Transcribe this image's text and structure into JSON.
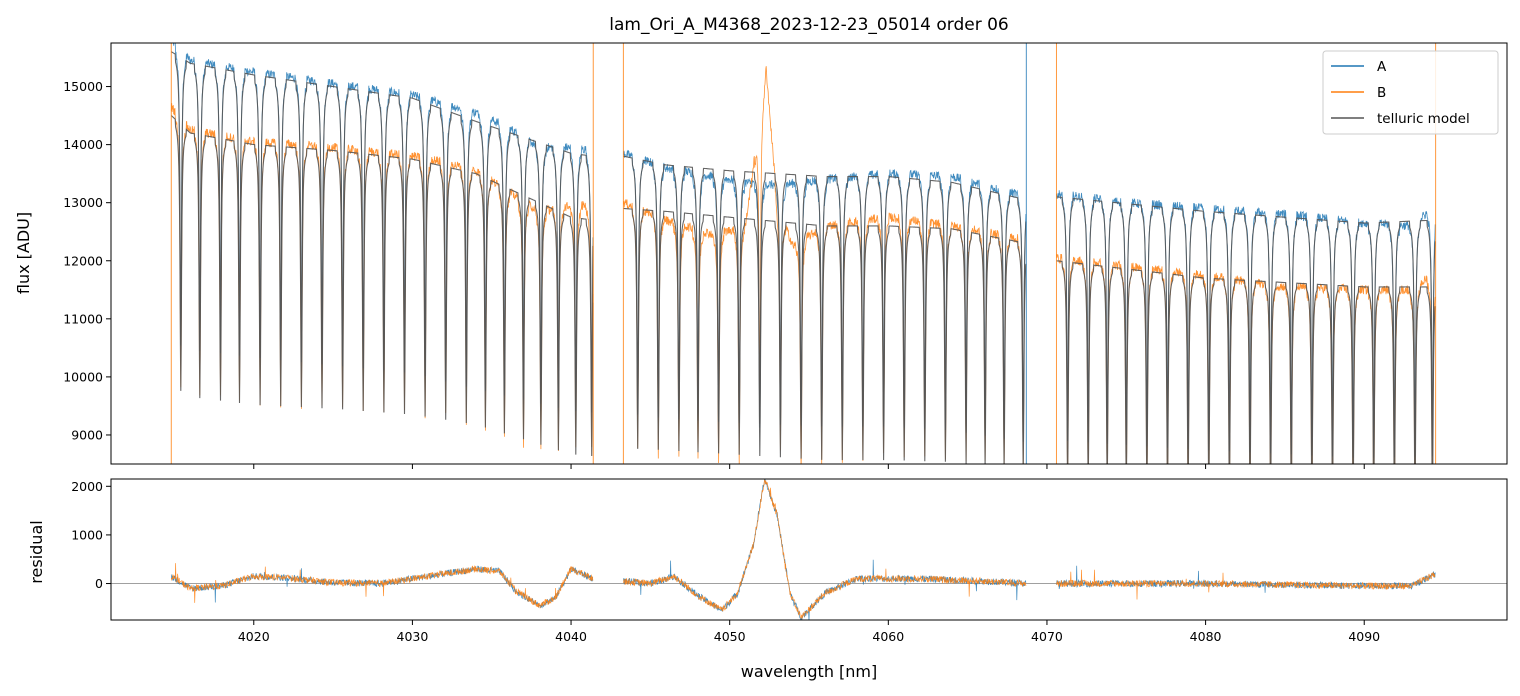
{
  "chart_data": {
    "type": "line",
    "title": "lam_Ori_A_M4368_2023-12-23_05014  order 06",
    "xlabel": "wavelength [nm]",
    "xlim": [
      4011,
      4099
    ],
    "x_ticks": [
      4020,
      4030,
      4040,
      4050,
      4060,
      4070,
      4080,
      4090
    ],
    "colors": {
      "A": "#1f77b4",
      "B": "#ff7f0e",
      "telluric": "#555555",
      "zero": "#808080"
    },
    "panels": [
      {
        "name": "flux",
        "ylabel": "flux [ADU]",
        "ylim": [
          8500,
          15750
        ],
        "y_ticks": [
          9000,
          10000,
          11000,
          12000,
          13000,
          14000,
          15000
        ],
        "legend": {
          "placement": "top-right",
          "entries": [
            "A",
            "B",
            "telluric model"
          ]
        },
        "continuum": {
          "segments": [
            [
              4014.8,
              4041.4
            ],
            [
              4043.3,
              4068.7
            ],
            [
              4070.6,
              4094.5
            ]
          ],
          "A_knots": [
            [
              4014.8,
              15800
            ],
            [
              4016,
              15450
            ],
            [
              4020,
              15250
            ],
            [
              4025,
              15050
            ],
            [
              4030,
              14850
            ],
            [
              4034,
              14550
            ],
            [
              4036,
              14300
            ],
            [
              4038,
              13950
            ],
            [
              4040,
              13950
            ],
            [
              4041.4,
              13900
            ],
            [
              4043.3,
              13850
            ],
            [
              4046,
              13600
            ],
            [
              4049,
              13450
            ],
            [
              4051,
              13350
            ],
            [
              4053,
              13300
            ],
            [
              4056,
              13400
            ],
            [
              4060,
              13500
            ],
            [
              4064,
              13450
            ],
            [
              4066,
              13300
            ],
            [
              4068.7,
              13100
            ],
            [
              4070.6,
              13150
            ],
            [
              4075,
              13000
            ],
            [
              4080,
              12900
            ],
            [
              4085,
              12800
            ],
            [
              4090,
              12650
            ],
            [
              4093,
              12600
            ],
            [
              4094.5,
              12950
            ]
          ],
          "B_knots": [
            [
              4014.8,
              14650
            ],
            [
              4016,
              14250
            ],
            [
              4020,
              14050
            ],
            [
              4025,
              13950
            ],
            [
              4030,
              13800
            ],
            [
              4032,
              13700
            ],
            [
              4034,
              13550
            ],
            [
              4036,
              13200
            ],
            [
              4038,
              12850
            ],
            [
              4040,
              12950
            ],
            [
              4041.4,
              12950
            ],
            [
              4043.3,
              13000
            ],
            [
              4046,
              12700
            ],
            [
              4049,
              12450
            ],
            [
              4051,
              12600
            ],
            [
              4052.3,
              15300
            ],
            [
              4053,
              12950
            ],
            [
              4054,
              12250
            ],
            [
              4056,
              12600
            ],
            [
              4060,
              12750
            ],
            [
              4064,
              12600
            ],
            [
              4068.7,
              12350
            ],
            [
              4070.6,
              12050
            ],
            [
              4075,
              11900
            ],
            [
              4080,
              11750
            ],
            [
              4085,
              11550
            ],
            [
              4090,
              11500
            ],
            [
              4093,
              11500
            ],
            [
              4094.5,
              11800
            ]
          ],
          "model_A_knots": [
            [
              4014.8,
              15600
            ],
            [
              4016,
              15400
            ],
            [
              4020,
              15200
            ],
            [
              4025,
              15000
            ],
            [
              4030,
              14800
            ],
            [
              4034,
              14400
            ],
            [
              4040,
              13850
            ],
            [
              4041.4,
              13800
            ],
            [
              4043.3,
              13800
            ],
            [
              4046,
              13650
            ],
            [
              4050,
              13550
            ],
            [
              4056,
              13450
            ],
            [
              4060,
              13450
            ],
            [
              4064,
              13350
            ],
            [
              4068.7,
              13050
            ],
            [
              4070.6,
              13100
            ],
            [
              4080,
              12850
            ],
            [
              4090,
              12650
            ],
            [
              4094.5,
              12700
            ]
          ],
          "model_B_knots": [
            [
              4014.8,
              14500
            ],
            [
              4016,
              14200
            ],
            [
              4020,
              14000
            ],
            [
              4025,
              13900
            ],
            [
              4030,
              13750
            ],
            [
              4034,
              13500
            ],
            [
              4040,
              12750
            ],
            [
              4041.4,
              12700
            ],
            [
              4043.3,
              12900
            ],
            [
              4046,
              12850
            ],
            [
              4050,
              12750
            ],
            [
              4056,
              12600
            ],
            [
              4060,
              12600
            ],
            [
              4064,
              12550
            ],
            [
              4068.7,
              12300
            ],
            [
              4070.6,
              12000
            ],
            [
              4080,
              11700
            ],
            [
              4090,
              11550
            ],
            [
              4094.5,
              11550
            ]
          ]
        },
        "absorption_lines": [
          4015.4,
          4016.6,
          4017.9,
          4019.1,
          4020.4,
          4021.7,
          4023.0,
          4024.3,
          4025.6,
          4026.9,
          4028.2,
          4029.5,
          4030.8,
          4032.1,
          4033.4,
          4034.6,
          4035.8,
          4037.0,
          4038.1,
          4039.2,
          4040.3,
          4041.3,
          4044.2,
          4045.5,
          4046.8,
          4048.0,
          4049.3,
          4050.6,
          4051.9,
          4053.2,
          4054.5,
          4055.8,
          4057.1,
          4058.4,
          4059.7,
          4061.0,
          4062.3,
          4063.6,
          4064.9,
          4066.1,
          4067.3,
          4068.5,
          4071.3,
          4072.6,
          4073.8,
          4075.0,
          4076.3,
          4077.6,
          4078.9,
          4080.2,
          4081.5,
          4082.8,
          4084.1,
          4085.4,
          4086.7,
          4088.0,
          4089.3,
          4090.6,
          4091.9,
          4093.2,
          4094.3
        ],
        "spikes": [
          {
            "x": 4014.8,
            "series": "B"
          },
          {
            "x": 4041.4,
            "series": "B"
          },
          {
            "x": 4043.3,
            "series": "B"
          },
          {
            "x": 4068.7,
            "series": "A"
          },
          {
            "x": 4070.6,
            "series": "B"
          },
          {
            "x": 4094.5,
            "series": "B"
          }
        ]
      },
      {
        "name": "residual",
        "ylabel": "residual",
        "ylim": [
          -750,
          2150
        ],
        "y_ticks": [
          0,
          1000,
          2000
        ],
        "zero_line": 0,
        "residual_knots": [
          [
            4014.8,
            150
          ],
          [
            4016,
            -100
          ],
          [
            4018,
            -50
          ],
          [
            4020,
            150
          ],
          [
            4022,
            120
          ],
          [
            4025,
            20
          ],
          [
            4028,
            0
          ],
          [
            4030,
            100
          ],
          [
            4032,
            200
          ],
          [
            4034,
            300
          ],
          [
            4035.5,
            250
          ],
          [
            4036.5,
            -150
          ],
          [
            4038,
            -450
          ],
          [
            4039,
            -300
          ],
          [
            4040,
            300
          ],
          [
            4041.4,
            100
          ],
          [
            4043.3,
            50
          ],
          [
            4045,
            0
          ],
          [
            4046.5,
            150
          ],
          [
            4048,
            -250
          ],
          [
            4049.5,
            -550
          ],
          [
            4050.5,
            -200
          ],
          [
            4051.5,
            800
          ],
          [
            4052.2,
            2150
          ],
          [
            4053,
            1400
          ],
          [
            4053.8,
            -200
          ],
          [
            4054.5,
            -700
          ],
          [
            4056,
            -200
          ],
          [
            4058,
            100
          ],
          [
            4062,
            100
          ],
          [
            4066,
            50
          ],
          [
            4068.7,
            0
          ],
          [
            4070.6,
            0
          ],
          [
            4080,
            0
          ],
          [
            4090,
            -50
          ],
          [
            4093,
            -50
          ],
          [
            4094.5,
            200
          ]
        ]
      }
    ]
  }
}
